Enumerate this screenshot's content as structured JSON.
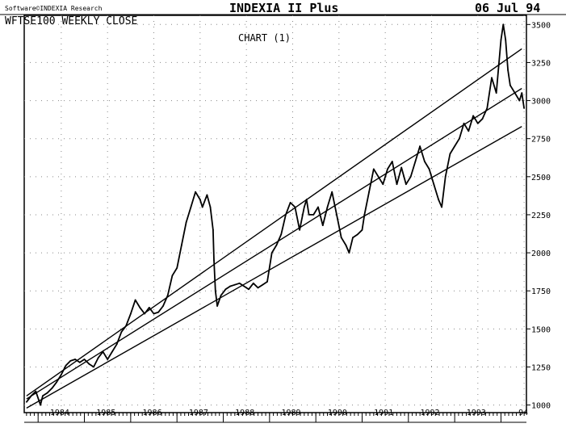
{
  "header": {
    "software_credit": "Software©INDEXIA Research",
    "app_title": "INDEXIA II Plus",
    "date": "06 Jul 94"
  },
  "chart_data": {
    "type": "line",
    "title": "WFTSE100 WEEKLY CLOSE",
    "subtitle": "CHART (1)",
    "xlabel": "",
    "ylabel": "",
    "x_tick_labels": [
      "1984",
      "1985",
      "1986",
      "1987",
      "1988",
      "1989",
      "1990",
      "1991",
      "1992",
      "1993",
      "94"
    ],
    "xlim": [
      1983.7,
      1994.55
    ],
    "ylim": [
      950,
      3560
    ],
    "y_ticks": [
      1000,
      1250,
      1500,
      1750,
      2000,
      2250,
      2500,
      2750,
      3000,
      3250,
      3500
    ],
    "grid": true,
    "series": [
      {
        "x": [
          1983.75,
          1983.85,
          1983.95,
          1984.05,
          1984.1,
          1984.2,
          1984.3,
          1984.4,
          1984.5,
          1984.6,
          1984.7,
          1984.8,
          1984.9,
          1985.0,
          1985.1,
          1985.2,
          1985.3,
          1985.4,
          1985.5,
          1985.6,
          1985.7,
          1985.8,
          1985.9,
          1986.0,
          1986.1,
          1986.2,
          1986.3,
          1986.4,
          1986.5,
          1986.6,
          1986.7,
          1986.8,
          1986.9,
          1987.0,
          1987.1,
          1987.2,
          1987.3,
          1987.4,
          1987.5,
          1987.55,
          1987.65,
          1987.72,
          1987.78,
          1987.8,
          1987.83,
          1987.87,
          1987.95,
          1988.05,
          1988.15,
          1988.25,
          1988.35,
          1988.45,
          1988.55,
          1988.65,
          1988.75,
          1988.85,
          1988.95,
          1989.05,
          1989.15,
          1989.25,
          1989.35,
          1989.45,
          1989.55,
          1989.65,
          1989.75,
          1989.8,
          1989.85,
          1989.95,
          1990.05,
          1990.15,
          1990.25,
          1990.35,
          1990.45,
          1990.55,
          1990.65,
          1990.72,
          1990.8,
          1990.9,
          1991.0,
          1991.05,
          1991.15,
          1991.25,
          1991.35,
          1991.45,
          1991.55,
          1991.65,
          1991.75,
          1991.85,
          1991.95,
          1992.05,
          1992.15,
          1992.25,
          1992.35,
          1992.45,
          1992.55,
          1992.65,
          1992.72,
          1992.8,
          1992.9,
          1993.0,
          1993.1,
          1993.2,
          1993.3,
          1993.4,
          1993.5,
          1993.6,
          1993.7,
          1993.8,
          1993.9,
          1994.0,
          1994.05,
          1994.1,
          1994.15,
          1994.2,
          1994.3,
          1994.4,
          1994.45,
          1994.5
        ],
        "values": [
          1020,
          1060,
          1090,
          1000,
          1060,
          1080,
          1110,
          1150,
          1200,
          1260,
          1290,
          1300,
          1280,
          1300,
          1270,
          1250,
          1310,
          1350,
          1300,
          1350,
          1400,
          1480,
          1520,
          1600,
          1690,
          1640,
          1600,
          1640,
          1600,
          1610,
          1650,
          1720,
          1850,
          1900,
          2050,
          2200,
          2300,
          2400,
          2350,
          2300,
          2380,
          2300,
          2150,
          1950,
          1750,
          1650,
          1720,
          1760,
          1780,
          1790,
          1800,
          1780,
          1760,
          1800,
          1770,
          1790,
          1810,
          2000,
          2050,
          2120,
          2250,
          2330,
          2300,
          2150,
          2300,
          2350,
          2250,
          2250,
          2300,
          2180,
          2300,
          2400,
          2250,
          2100,
          2050,
          2000,
          2100,
          2120,
          2150,
          2250,
          2400,
          2550,
          2500,
          2450,
          2550,
          2600,
          2450,
          2560,
          2450,
          2500,
          2600,
          2700,
          2600,
          2550,
          2450,
          2350,
          2300,
          2500,
          2650,
          2700,
          2750,
          2850,
          2800,
          2900,
          2850,
          2880,
          2950,
          3150,
          3050,
          3400,
          3500,
          3400,
          3200,
          3100,
          3050,
          3000,
          3050,
          2950
        ]
      }
    ],
    "channel_lines": [
      {
        "x": [
          1983.75,
          1994.45
        ],
        "values": [
          1060,
          3340
        ]
      },
      {
        "x": [
          1983.75,
          1994.45
        ],
        "values": [
          1040,
          3080
        ]
      },
      {
        "x": [
          1983.75,
          1994.45
        ],
        "values": [
          980,
          2830
        ]
      }
    ]
  }
}
